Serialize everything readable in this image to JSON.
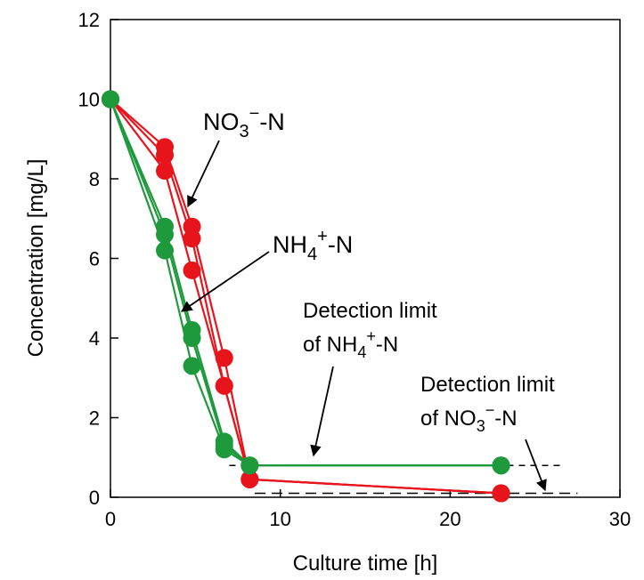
{
  "chart_data": {
    "type": "line",
    "xlabel": "Culture time [h]",
    "ylabel": "Concentration [mg/L]",
    "xlim": [
      0,
      30
    ],
    "ylim": [
      0,
      12
    ],
    "x_ticks": [
      0,
      10,
      20,
      30
    ],
    "y_ticks": [
      0,
      2,
      4,
      6,
      8,
      10,
      12
    ],
    "grid": false,
    "legend": "none",
    "colors": {
      "nitrate": "#e8141c",
      "ammonium": "#1e9a3c"
    },
    "series": [
      {
        "group": "nitrate",
        "x": [
          0,
          3.2,
          4.8,
          6.7,
          8.2,
          23
        ],
        "y": [
          10,
          8.8,
          6.8,
          3.5,
          0.45,
          0.1
        ]
      },
      {
        "group": "nitrate",
        "x": [
          0,
          3.2,
          4.8,
          6.7,
          8.2,
          23
        ],
        "y": [
          10,
          8.6,
          6.5,
          2.8,
          0.45,
          0.1
        ]
      },
      {
        "group": "nitrate",
        "x": [
          0,
          3.2,
          4.8,
          6.7,
          8.2,
          23
        ],
        "y": [
          10,
          8.2,
          5.7,
          2.8,
          0.45,
          0.1
        ]
      },
      {
        "group": "ammonium",
        "x": [
          0,
          3.2,
          4.8,
          6.7,
          8.2,
          23
        ],
        "y": [
          10,
          6.8,
          4.2,
          1.4,
          0.8,
          0.8
        ]
      },
      {
        "group": "ammonium",
        "x": [
          0,
          3.2,
          4.8,
          6.7,
          8.2,
          23
        ],
        "y": [
          10,
          6.6,
          4.0,
          1.3,
          0.8,
          0.8
        ]
      },
      {
        "group": "ammonium",
        "x": [
          0,
          3.2,
          4.8,
          6.7,
          8.2,
          23
        ],
        "y": [
          10,
          6.2,
          3.3,
          1.2,
          0.8,
          0.8
        ]
      }
    ],
    "detection_limits": {
      "ammonium": 0.8,
      "nitrate": 0.1
    },
    "annotations": {
      "nitrate_label": {
        "main": "NO",
        "sub": "3",
        "sup": "−",
        "tail": "-N"
      },
      "ammonium_label": {
        "main": "NH",
        "sub": "4",
        "sup": "+",
        "tail": "-N"
      },
      "dl_ammonium": {
        "line1": "Detection limit",
        "pre": "of NH",
        "sub": "4",
        "sup": "+",
        "tail": "-N"
      },
      "dl_nitrate": {
        "line1": "Detection limit",
        "pre": "of NO",
        "sub": "3",
        "sup": "−",
        "tail": "-N"
      }
    }
  }
}
